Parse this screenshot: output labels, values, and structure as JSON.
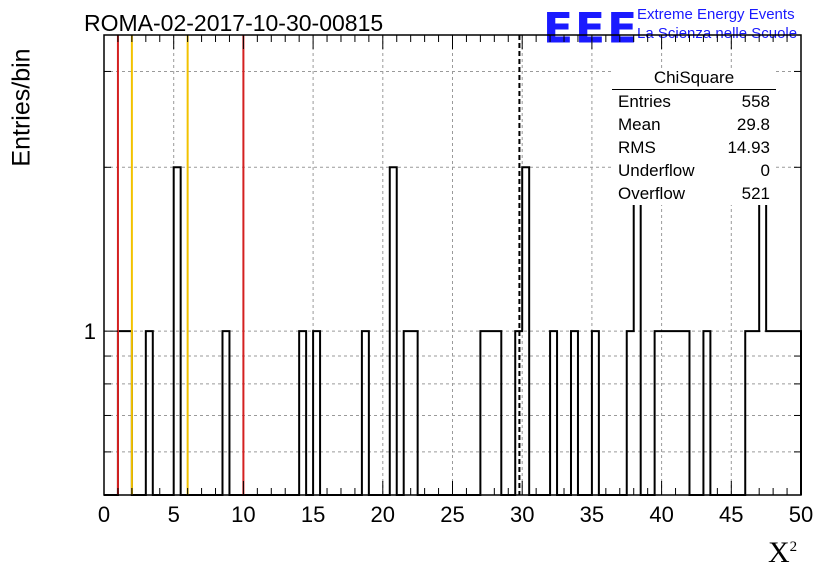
{
  "header": {
    "title": "ROMA-02-2017-10-30-00815",
    "logo_text": "EEE",
    "logo_line1": "Extreme Energy Events",
    "logo_line2": "La Scienza nelle Scuole",
    "logo_color": "#1a1aff"
  },
  "stats": {
    "title": "ChiSquare",
    "rows": [
      {
        "label": "Entries",
        "value": "558"
      },
      {
        "label": "Mean",
        "value": "29.8"
      },
      {
        "label": "RMS",
        "value": "14.93"
      },
      {
        "label": "Underflow",
        "value": "0"
      },
      {
        "label": "Overflow",
        "value": "521"
      }
    ]
  },
  "chart_data": {
    "type": "histogram",
    "xlabel": "X",
    "xlabel_sup": "2",
    "ylabel": "Entries/bin",
    "xlim": [
      0,
      50
    ],
    "ylim_log": [
      0.5,
      3.5
    ],
    "log_y": true,
    "grid": true,
    "bin_width": 0.5,
    "x_ticks": [
      0,
      5,
      10,
      15,
      20,
      25,
      30,
      35,
      40,
      45,
      50
    ],
    "y_tick_labels": [
      {
        "value": 1,
        "label": "1"
      }
    ],
    "bins": [
      {
        "x": 1.0,
        "count": 1
      },
      {
        "x": 1.5,
        "count": 1
      },
      {
        "x": 3.0,
        "count": 1
      },
      {
        "x": 5.0,
        "count": 2
      },
      {
        "x": 8.5,
        "count": 1
      },
      {
        "x": 14.0,
        "count": 1
      },
      {
        "x": 15.0,
        "count": 1
      },
      {
        "x": 18.5,
        "count": 1
      },
      {
        "x": 20.5,
        "count": 2
      },
      {
        "x": 21.5,
        "count": 1
      },
      {
        "x": 22.0,
        "count": 1
      },
      {
        "x": 27.0,
        "count": 1
      },
      {
        "x": 27.5,
        "count": 1
      },
      {
        "x": 28.0,
        "count": 1
      },
      {
        "x": 29.5,
        "count": 1
      },
      {
        "x": 30.0,
        "count": 2
      },
      {
        "x": 32.0,
        "count": 1
      },
      {
        "x": 33.5,
        "count": 1
      },
      {
        "x": 35.0,
        "count": 1
      },
      {
        "x": 37.5,
        "count": 1
      },
      {
        "x": 38.0,
        "count": 2
      },
      {
        "x": 39.5,
        "count": 1
      },
      {
        "x": 40.0,
        "count": 1
      },
      {
        "x": 40.5,
        "count": 1
      },
      {
        "x": 41.0,
        "count": 1
      },
      {
        "x": 41.5,
        "count": 1
      },
      {
        "x": 43.0,
        "count": 1
      },
      {
        "x": 46.0,
        "count": 1
      },
      {
        "x": 46.5,
        "count": 1
      },
      {
        "x": 47.0,
        "count": 2
      },
      {
        "x": 47.5,
        "count": 1
      },
      {
        "x": 48.0,
        "count": 1
      },
      {
        "x": 48.5,
        "count": 1
      },
      {
        "x": 49.0,
        "count": 1
      },
      {
        "x": 49.5,
        "count": 1
      }
    ],
    "vertical_lines": [
      {
        "x": 1.0,
        "color": "#d42020",
        "style": "solid"
      },
      {
        "x": 2.0,
        "color": "#f2c200",
        "style": "solid"
      },
      {
        "x": 6.0,
        "color": "#f2c200",
        "style": "solid"
      },
      {
        "x": 10.0,
        "color": "#d42020",
        "style": "solid"
      },
      {
        "x": 29.8,
        "color": "#000000",
        "style": "dashed"
      }
    ]
  }
}
